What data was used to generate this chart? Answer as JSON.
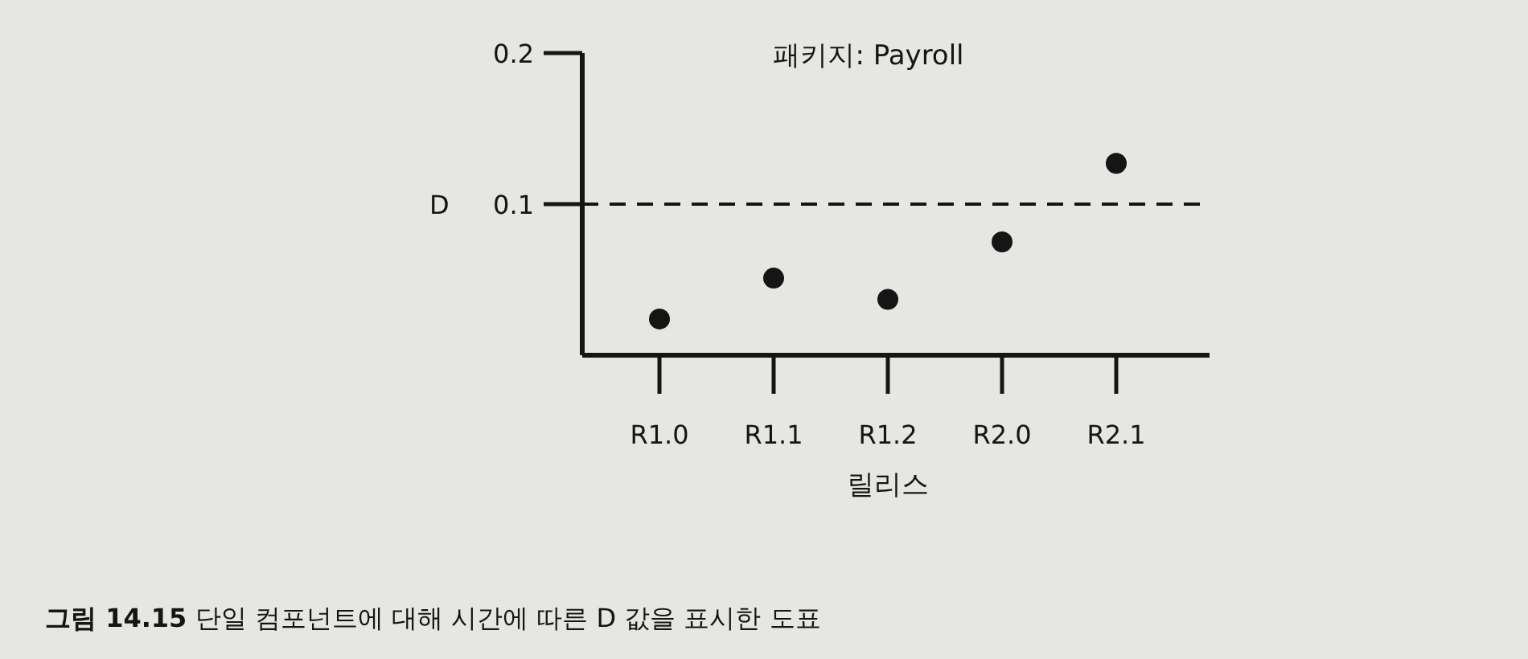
{
  "chart_data": {
    "type": "scatter",
    "title": "패키지: Payroll",
    "xlabel": "릴리스",
    "categories": [
      "R1.0",
      "R1.1",
      "R1.2",
      "R2.0",
      "R2.1"
    ],
    "series": [
      {
        "color": "#151515",
        "values": [
          0.024,
          0.051,
          0.037,
          0.075,
          0.127
        ]
      }
    ],
    "ylim": [
      0,
      0.2
    ],
    "yticks": [
      0.1,
      0.2
    ],
    "ref_lines": [
      {
        "axis": "y",
        "value": 0.1,
        "label": "D",
        "line_style": "dashed",
        "color": "#151515"
      }
    ],
    "annotations": [
      "그림 14.15 단일 컴포넌트에 대해 시간에 따른 D 값을 표시한 도표"
    ],
    "marker": "circle"
  }
}
